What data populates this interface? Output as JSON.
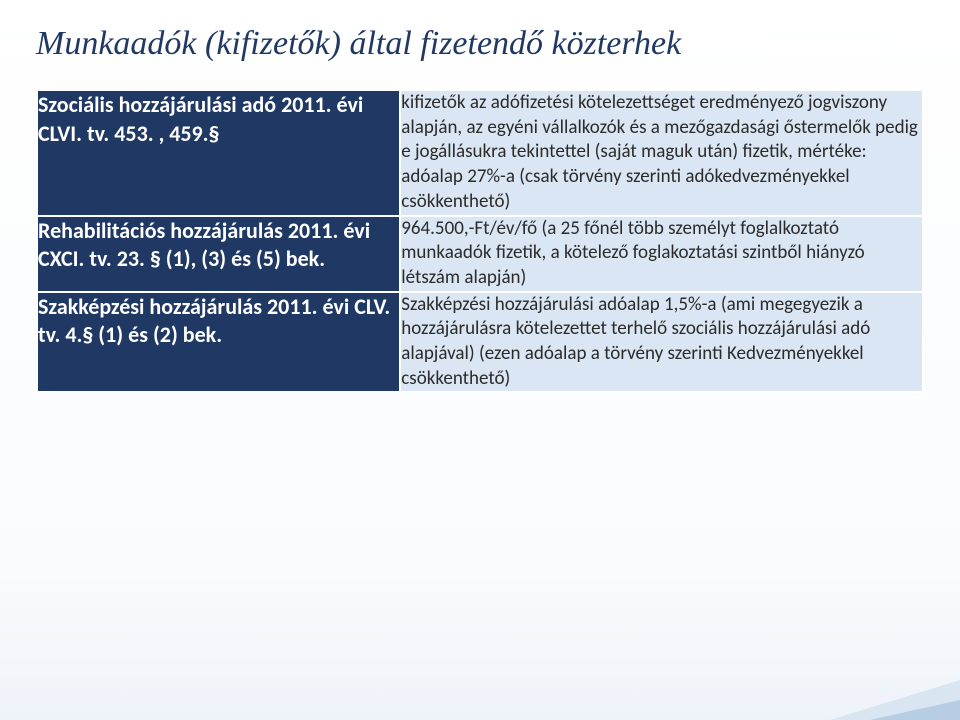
{
  "title": "Munkaadók (kifizetők) által fizetendő közterhek",
  "style": {
    "title_color": "#203864",
    "title_fontsize": 34,
    "title_italic": true,
    "left_col_bg": "#203864",
    "left_col_text": "#ffffff",
    "left_col_fontsize": 22,
    "left_col_weight": 700,
    "right_col_bg": "#dae6f3",
    "right_col_text": "#2b2b2b",
    "right_col_fontsize": 19,
    "right_col_weight": 400,
    "border_color": "#ffffff",
    "background_gradient_top": "#ffffff",
    "background_gradient_bottom": "#eef3f9",
    "corner_light": "#d9e6f2",
    "corner_dark": "#b7cde4",
    "col_widths_percent": [
      41,
      59
    ]
  },
  "rows": [
    {
      "left": "Szociális hozzájárulási adó 2011. évi CLVI. tv. 453. , 459.§",
      "right": "kifizetők az adófizetési kötelezettséget eredményező jogviszony alapján, az egyéni vállalkozók és a mezőgazdasági őstermelők pedig e jogállásukra tekintettel (saját maguk után) fizetik, mértéke: adóalap 27%-a (csak törvény szerinti adókedvezményekkel csökkenthető)"
    },
    {
      "left": "Rehabilitációs hozzájárulás 2011. évi CXCI. tv. 23. § (1), (3) és (5) bek.",
      "right": "964.500,-Ft/év/fő (a 25 főnél több személyt foglalkoztató munkaadók fizetik, a kötelező foglakoztatási szintből hiányzó létszám alapján)"
    },
    {
      "left": "Szakképzési hozzájárulás 2011. évi CLV. tv. 4.§ (1) és (2) bek.",
      "right": "Szakképzési hozzájárulási adóalap 1,5%-a (ami megegyezik a hozzájárulásra kötelezettet terhelő szociális hozzájárulási adó alapjával) (ezen adóalap a törvény szerinti  Kedvezményekkel csökkenthető)"
    }
  ]
}
